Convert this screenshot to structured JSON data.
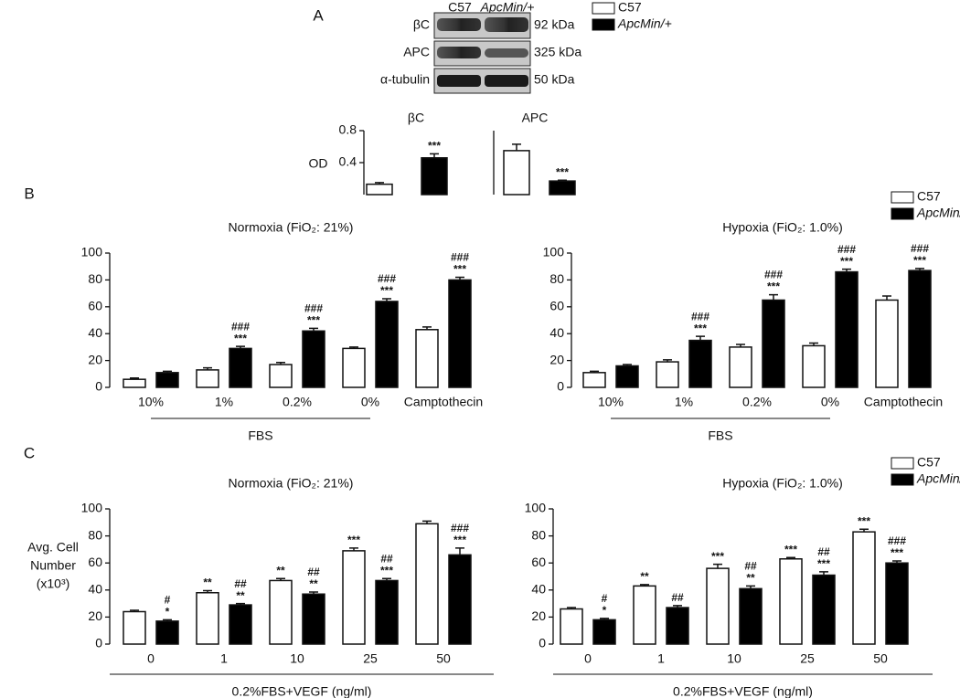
{
  "panel_labels": [
    "A",
    "B",
    "C"
  ],
  "blot": {
    "lanes": [
      "C57",
      "ApcMin/+"
    ],
    "bands": [
      {
        "label": "βC",
        "size": "92 kDa"
      },
      {
        "label": "APC",
        "size": "325 kDa"
      },
      {
        "label": "α-tubulin",
        "size": "50 kDa"
      }
    ]
  },
  "chart_data": [
    {
      "type": "bar",
      "title": "βC",
      "ylabel": [
        "OD"
      ],
      "categories": [
        null
      ],
      "ylim": [
        0,
        0.8
      ],
      "yticks": [
        0.4,
        0.8
      ],
      "legend": "top",
      "series": [
        {
          "name": "C57",
          "color": "#ffffff",
          "values": [
            0.13
          ],
          "errors": [
            0.02
          ],
          "annotations": [
            []
          ]
        },
        {
          "name": "ApcMin/+",
          "color": "#000000",
          "values": [
            0.46
          ],
          "errors": [
            0.05
          ],
          "annotations": [
            [
              "***"
            ]
          ]
        }
      ]
    },
    {
      "type": "bar",
      "title": "APC",
      "categories": [
        null
      ],
      "ylim": [
        0,
        0.8
      ],
      "series": [
        {
          "name": "C57",
          "color": "#ffffff",
          "values": [
            0.55
          ],
          "errors": [
            0.08
          ],
          "annotations": [
            []
          ]
        },
        {
          "name": "ApcMin/+",
          "color": "#000000",
          "values": [
            0.17
          ],
          "errors": [
            0.01
          ],
          "annotations": [
            [
              "***"
            ]
          ]
        }
      ]
    },
    {
      "type": "bar",
      "title": "Normoxia (FiO₂: 21%)",
      "categories": [
        "10%",
        "1%",
        "0.2%",
        "0%",
        "Camptothecin"
      ],
      "group_label": "FBS",
      "ylim": [
        0,
        100
      ],
      "yticks": [
        0,
        20,
        40,
        60,
        80,
        100
      ],
      "series": [
        {
          "name": "C57",
          "color": "#ffffff",
          "values": [
            6,
            13,
            17,
            29,
            43
          ],
          "errors": [
            1,
            1.5,
            1.5,
            1,
            2
          ],
          "annotations": [
            [],
            [],
            [],
            [],
            []
          ]
        },
        {
          "name": "ApcMin/+",
          "color": "#000000",
          "values": [
            11,
            29,
            42,
            64,
            80
          ],
          "errors": [
            1,
            1.5,
            2,
            2,
            2
          ],
          "annotations": [
            [],
            [
              "###",
              "***"
            ],
            [
              "###",
              "***"
            ],
            [
              "###",
              "***"
            ],
            [
              "###",
              "***"
            ]
          ]
        }
      ]
    },
    {
      "type": "bar",
      "title": "Hypoxia (FiO₂: 1.0%)",
      "categories": [
        "10%",
        "1%",
        "0.2%",
        "0%",
        "Camptothecin"
      ],
      "group_label": "FBS",
      "ylim": [
        0,
        100
      ],
      "yticks": [
        0,
        20,
        40,
        60,
        80,
        100
      ],
      "legend": "upper right",
      "series": [
        {
          "name": "C57",
          "color": "#ffffff",
          "values": [
            11,
            19,
            30,
            31,
            65
          ],
          "errors": [
            1,
            1.5,
            2,
            2,
            3
          ],
          "annotations": [
            [],
            [],
            [],
            [],
            []
          ]
        },
        {
          "name": "ApcMin/+",
          "color": "#000000",
          "values": [
            16,
            35,
            65,
            86,
            87
          ],
          "errors": [
            1,
            3,
            4,
            2,
            1.5
          ],
          "annotations": [
            [],
            [
              "###",
              "***"
            ],
            [
              "###",
              "***"
            ],
            [
              "###",
              "***"
            ],
            [
              "###",
              "***"
            ]
          ]
        }
      ]
    },
    {
      "type": "bar",
      "title": "Normoxia (FiO₂: 21%)",
      "categories": [
        "0",
        "1",
        "10",
        "25",
        "50"
      ],
      "xlabel": "0.2%FBS+VEGF (ng/ml)",
      "ylabel": [
        "Avg. Cell",
        "Number",
        "(x10³)"
      ],
      "ylim": [
        0,
        100
      ],
      "yticks": [
        0,
        20,
        40,
        60,
        80,
        100
      ],
      "series": [
        {
          "name": "C57",
          "color": "#ffffff",
          "values": [
            24,
            38,
            47,
            69,
            89
          ],
          "errors": [
            1,
            1.5,
            1.5,
            2,
            2
          ],
          "annotations": [
            [],
            [
              "**"
            ],
            [
              "**"
            ],
            [
              "***"
            ],
            []
          ]
        },
        {
          "name": "ApcMin/+",
          "color": "#000000",
          "values": [
            17,
            29,
            37,
            47,
            66
          ],
          "errors": [
            1,
            1,
            1.5,
            1.5,
            5
          ],
          "annotations": [
            [
              "#",
              "*"
            ],
            [
              "##",
              "**"
            ],
            [
              "##",
              "**"
            ],
            [
              "##",
              "***"
            ],
            [
              "###",
              "***"
            ]
          ]
        }
      ]
    },
    {
      "type": "bar",
      "title": "Hypoxia (FiO₂: 1.0%)",
      "categories": [
        "0",
        "1",
        "10",
        "25",
        "50"
      ],
      "xlabel": "0.2%FBS+VEGF (ng/ml)",
      "ylim": [
        0,
        100
      ],
      "yticks": [
        0,
        20,
        40,
        60,
        80,
        100
      ],
      "legend": "upper right",
      "series": [
        {
          "name": "C57",
          "color": "#ffffff",
          "values": [
            26,
            43,
            56,
            63,
            83
          ],
          "errors": [
            1,
            1,
            3,
            1,
            2
          ],
          "annotations": [
            [],
            [
              "**"
            ],
            [
              "***"
            ],
            [
              "***"
            ],
            [
              "***"
            ]
          ]
        },
        {
          "name": "ApcMin/+",
          "color": "#000000",
          "values": [
            18,
            27,
            41,
            51,
            60
          ],
          "errors": [
            1,
            1.5,
            2,
            2.5,
            1.5
          ],
          "annotations": [
            [
              "#",
              "*"
            ],
            [
              "##"
            ],
            [
              "##",
              "**"
            ],
            [
              "##",
              "***"
            ],
            [
              "###",
              "***"
            ]
          ]
        }
      ]
    }
  ]
}
